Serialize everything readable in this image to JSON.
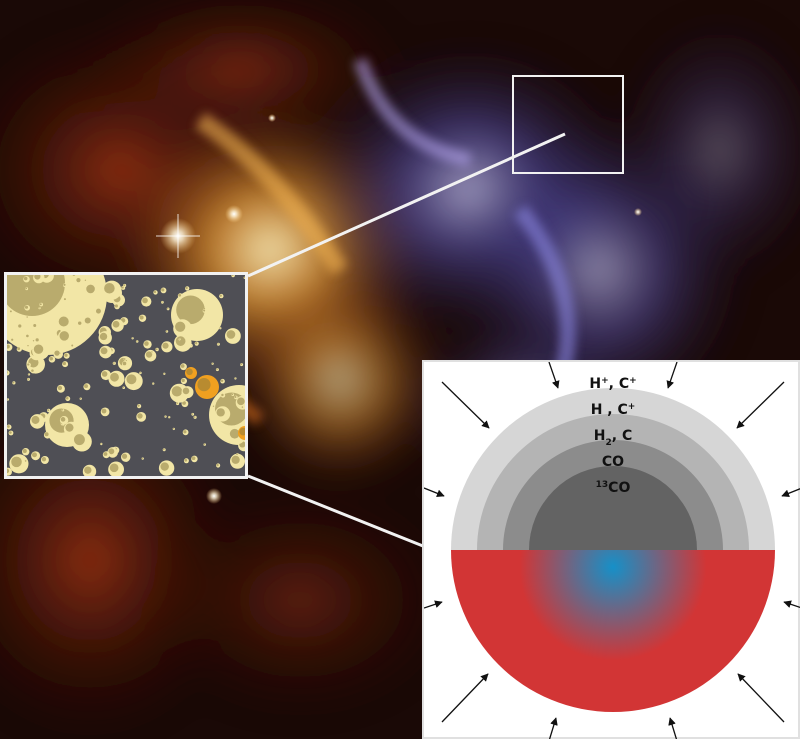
{
  "diagram": {
    "layers": [
      {
        "species": "H",
        "sup": "+",
        "sep": ", ",
        "species2": "C",
        "sup2": "+",
        "color": "#ffffff"
      },
      {
        "species": "H",
        "sup": "",
        "sep": " , ",
        "species2": "C",
        "sup2": "+",
        "color": "#d6d6d6"
      },
      {
        "species": "H",
        "sub": "2",
        "sep": ", ",
        "species2": "C",
        "color": "#b4b4b4"
      },
      {
        "species": "CO",
        "color": "#8c8c8c"
      },
      {
        "species": "CO",
        "pre_sup": "13",
        "color": "#636363"
      }
    ],
    "clump_colors": {
      "outer": "#d23535",
      "core": "#1690c8"
    },
    "arrow_color": "#111111",
    "frame_color": "#f2f2f2",
    "dust_colors": {
      "background": "#4f4f55",
      "grain": "#f2e6a6",
      "grain_shadow": "#8a7a3e",
      "heated": "#f0a020"
    }
  }
}
